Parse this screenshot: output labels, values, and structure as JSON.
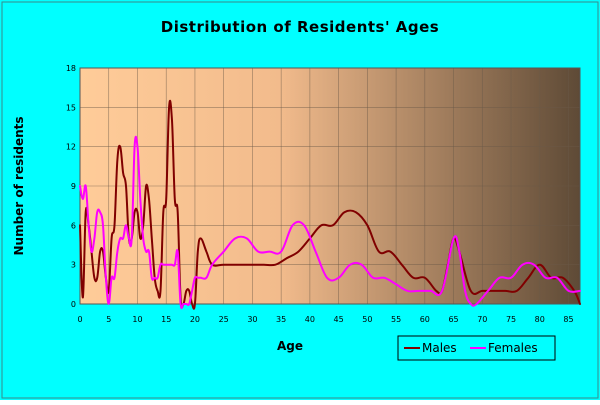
{
  "chart_data": {
    "type": "line",
    "title": "Distribution of Residents' Ages",
    "xlabel": "Age",
    "ylabel": "Number of residents",
    "xlim": [
      0,
      87
    ],
    "ylim": [
      0,
      18
    ],
    "x_ticks": [
      0,
      5,
      10,
      15,
      20,
      25,
      30,
      35,
      40,
      45,
      50,
      55,
      60,
      65,
      70,
      75,
      80,
      85
    ],
    "x_tick_labels": [
      "0",
      "5",
      "10",
      "15",
      "20",
      "25",
      "30",
      "35",
      "40",
      "45",
      "50",
      "55",
      "60",
      "65",
      "70",
      "75",
      "80",
      "85"
    ],
    "y_ticks": [
      0,
      3,
      6,
      9,
      12,
      15,
      18
    ],
    "y_tick_labels": [
      "0",
      "3",
      "6",
      "9",
      "12",
      "15",
      "18"
    ],
    "grid": true,
    "legend_position": "bottom-right",
    "colors": {
      "background": "#00ffff",
      "plot_start": "#ffcc99",
      "plot_end": "#5e4a36",
      "males": "#800000",
      "females": "#ff00ff"
    },
    "series": [
      {
        "name": "Males",
        "color": "#800000",
        "x": [
          0,
          0.5,
          1,
          1.5,
          2,
          2.5,
          3,
          3.5,
          4,
          4.5,
          5,
          5.5,
          6,
          6.5,
          7,
          7.5,
          8,
          8.5,
          9,
          9.5,
          10,
          10.5,
          11,
          11.5,
          12,
          12.5,
          13,
          13.5,
          14,
          14.5,
          15,
          15.5,
          16,
          16.5,
          17,
          17.5,
          18,
          18.5,
          19,
          19.5,
          20,
          20.5,
          21,
          22,
          23,
          25,
          28,
          30,
          32,
          34,
          36,
          38,
          40,
          42,
          44,
          46,
          48,
          50,
          52,
          54,
          56,
          58,
          60,
          62,
          63,
          64,
          65,
          66,
          68,
          70,
          72,
          74,
          76,
          78,
          80,
          82,
          84,
          86,
          87
        ],
        "values": [
          6,
          0.5,
          7,
          6,
          4,
          2,
          2,
          4,
          4,
          2,
          1,
          5,
          6,
          11,
          12,
          10,
          9,
          5,
          5,
          7,
          7,
          5,
          6,
          9,
          8,
          5,
          2,
          1,
          1,
          7,
          8,
          15,
          14,
          8,
          7,
          0.5,
          0,
          1,
          1,
          0,
          0,
          4,
          5,
          4,
          3,
          3,
          3,
          3,
          3,
          3,
          3.5,
          4,
          5,
          6,
          6,
          7,
          7,
          6,
          4,
          4,
          3,
          2,
          2,
          1,
          1,
          3,
          5,
          4,
          1,
          1,
          1,
          1,
          1,
          2,
          3,
          2,
          2,
          1,
          0
        ]
      },
      {
        "name": "Females",
        "color": "#ff00ff",
        "x": [
          0,
          0.5,
          1,
          1.5,
          2,
          2.5,
          3,
          3.5,
          4,
          4.5,
          5,
          5.5,
          6,
          6.5,
          7,
          7.5,
          8,
          8.5,
          9,
          9.5,
          10,
          10.5,
          11,
          11.5,
          12,
          12.5,
          13,
          13.5,
          14,
          14.5,
          15,
          15.5,
          16,
          16.5,
          17,
          17.5,
          18,
          18.5,
          19,
          19.5,
          20,
          20.5,
          21,
          22,
          23,
          25,
          27,
          29,
          31,
          33,
          35,
          37,
          39,
          41,
          43,
          45,
          47,
          49,
          51,
          53,
          55,
          57,
          59,
          61,
          63,
          65,
          66,
          67,
          68,
          69,
          71,
          73,
          75,
          77,
          79,
          81,
          83,
          85,
          87
        ],
        "values": [
          9,
          8,
          9,
          6,
          4,
          5,
          7,
          7,
          6,
          2,
          0,
          2,
          2,
          4,
          5,
          5,
          6,
          5,
          5,
          12,
          12,
          8,
          5,
          4,
          4,
          2,
          2,
          2,
          3,
          3,
          3,
          3,
          3,
          3,
          4,
          0,
          0,
          0,
          0,
          1,
          2,
          2,
          2,
          2,
          3,
          4,
          5,
          5,
          4,
          4,
          4,
          6,
          6,
          4,
          2,
          2,
          3,
          3,
          2,
          2,
          1.5,
          1,
          1,
          1,
          1,
          5,
          4,
          1,
          0,
          0,
          1,
          2,
          2,
          3,
          3,
          2,
          2,
          1,
          1
        ]
      }
    ]
  }
}
